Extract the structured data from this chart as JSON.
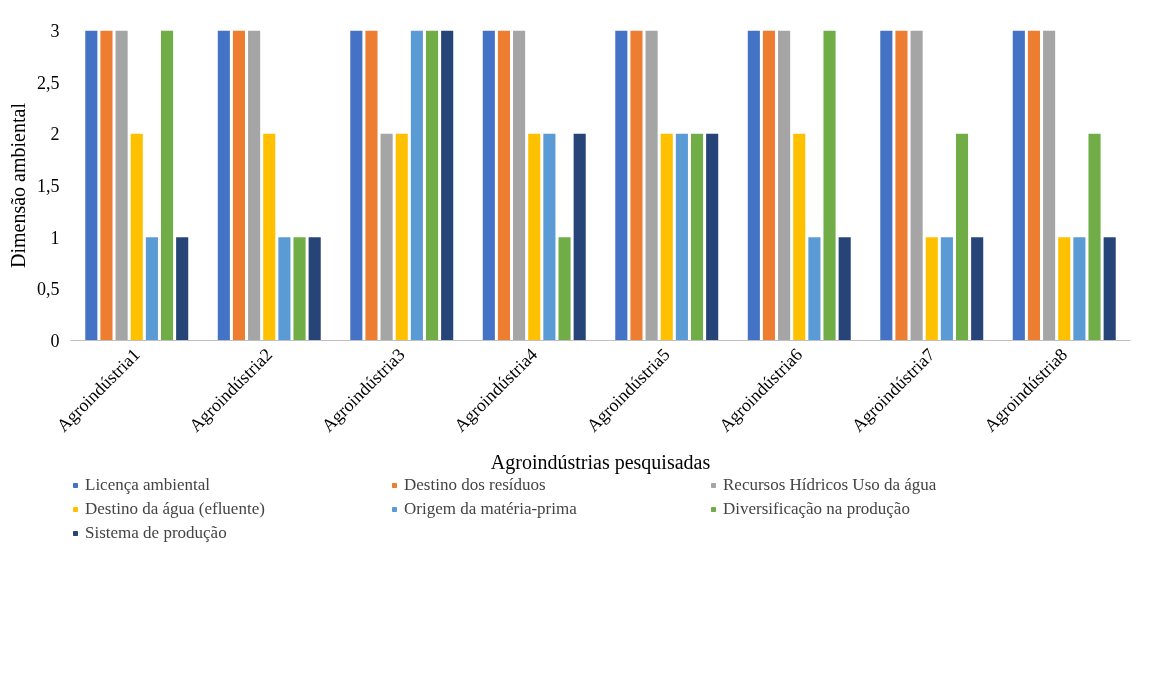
{
  "chart_data": {
    "type": "bar",
    "xlabel": "Agroindústrias pesquisadas",
    "ylabel": "Dimensão ambiental",
    "categories": [
      "Agroindústria1",
      "Agroindústria2",
      "Agroindústria3",
      "Agroindústria4",
      "Agroindústria5",
      "Agroindústria6",
      "Agroindústria7",
      "Agroindústria8"
    ],
    "series": [
      {
        "name": "Licença ambiental",
        "color": "#4472c4",
        "values": [
          3,
          3,
          3,
          3,
          3,
          3,
          3,
          3
        ]
      },
      {
        "name": "Destino dos resíduos",
        "color": "#ed7d31",
        "values": [
          3,
          3,
          3,
          3,
          3,
          3,
          3,
          3
        ]
      },
      {
        "name": "Recursos Hídricos Uso da água",
        "color": "#a5a5a5",
        "values": [
          3,
          3,
          2,
          3,
          3,
          3,
          3,
          3
        ]
      },
      {
        "name": "Destino da água (efluente)",
        "color": "#ffc000",
        "values": [
          2,
          2,
          2,
          2,
          2,
          2,
          1,
          1
        ]
      },
      {
        "name": "Origem da matéria-prima",
        "color": "#5b9bd5",
        "values": [
          1,
          1,
          3,
          2,
          2,
          1,
          1,
          1
        ]
      },
      {
        "name": "Diversificação na produção",
        "color": "#70ad47",
        "values": [
          3,
          1,
          3,
          1,
          2,
          3,
          2,
          2
        ]
      },
      {
        "name": "Sistema de produção",
        "color": "#264478",
        "values": [
          1,
          1,
          3,
          2,
          2,
          1,
          1,
          1
        ]
      }
    ],
    "ylim": [
      0,
      3
    ],
    "yticks": [
      0,
      {
        "value": 0.5,
        "label": "0,5"
      },
      1,
      {
        "value": 1.5,
        "label": "1,5"
      },
      2,
      {
        "value": 2.5,
        "label": "2,5"
      },
      3
    ],
    "grid": false,
    "legend": "bottom"
  }
}
